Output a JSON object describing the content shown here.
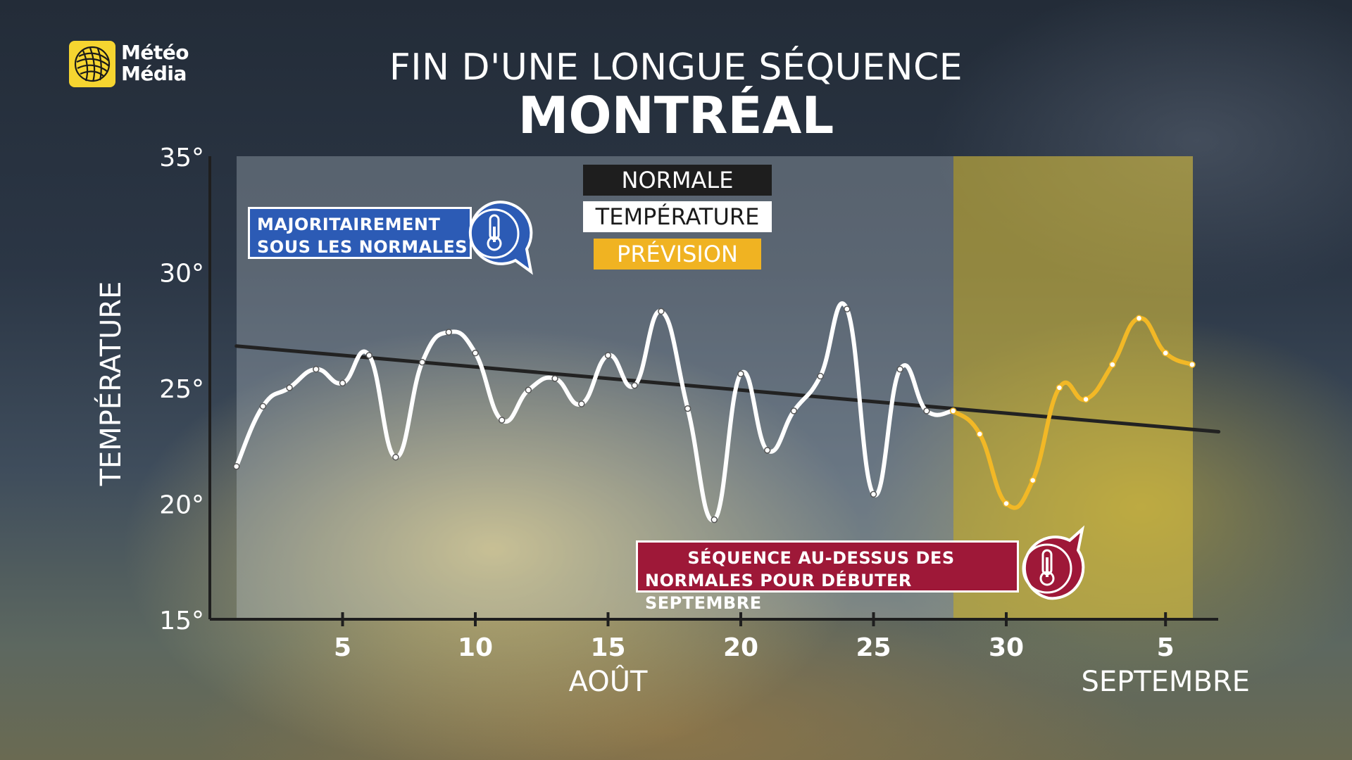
{
  "brand": {
    "line1": "Météo",
    "line2": "Média"
  },
  "title": "FIN D'UNE LONGUE SÉQUENCE",
  "subtitle": "MONTRÉAL",
  "legend": {
    "normale": "NORMALE",
    "temperature": "TEMPÉRATURE",
    "prevision": "PRÉVISION"
  },
  "callouts": {
    "below": [
      "MAJORITAIREMENT",
      "SOUS LES NORMALES"
    ],
    "above": [
      "SÉQUENCE AU-DESSUS DES",
      "NORMALES POUR DÉBUTER SEPTEMBRE"
    ]
  },
  "colors": {
    "observed": "#ffffff",
    "forecast": "#f2b826",
    "normal": "#222222",
    "below_badge": "#2c5bb5",
    "above_badge": "#9e1838"
  },
  "chart_data": {
    "type": "line",
    "ylabel": "TEMPÉRATURE",
    "ylim": [
      15,
      35
    ],
    "yticks": [
      {
        "value": 15,
        "label": "15°"
      },
      {
        "value": 20,
        "label": "20°"
      },
      {
        "value": 25,
        "label": "25°"
      },
      {
        "value": 30,
        "label": "30°"
      },
      {
        "value": 35,
        "label": "35°"
      }
    ],
    "xlim": [
      0,
      38
    ],
    "xticks": [
      {
        "day": 5,
        "label": "5"
      },
      {
        "day": 10,
        "label": "10"
      },
      {
        "day": 15,
        "label": "15"
      },
      {
        "day": 20,
        "label": "20"
      },
      {
        "day": 25,
        "label": "25"
      },
      {
        "day": 30,
        "label": "30"
      },
      {
        "day": 36,
        "label": "5"
      }
    ],
    "month_labels": [
      {
        "day": 15,
        "label": "AOÛT"
      },
      {
        "day": 36,
        "label": "SEPTEMBRE"
      }
    ],
    "series": [
      {
        "name": "TEMPÉRATURE",
        "days": [
          1,
          2,
          3,
          4,
          5,
          6,
          7,
          8,
          9,
          10,
          11,
          12,
          13,
          14,
          15,
          16,
          17,
          18,
          19,
          20,
          21,
          22,
          23,
          24,
          25,
          26,
          27,
          28
        ],
        "values": [
          21.6,
          24.2,
          25.0,
          25.8,
          25.2,
          26.4,
          22.0,
          26.1,
          27.4,
          26.5,
          23.6,
          24.9,
          25.4,
          24.3,
          26.4,
          25.1,
          28.3,
          24.1,
          19.3,
          25.6,
          22.3,
          24.0,
          25.5,
          28.4,
          20.4,
          25.8,
          24.0,
          24.0
        ]
      },
      {
        "name": "PRÉVISION",
        "days": [
          28,
          29,
          30,
          31,
          32,
          33,
          34,
          35,
          36,
          37
        ],
        "values": [
          24.0,
          23.0,
          20.0,
          21.0,
          25.0,
          24.5,
          26.0,
          28.0,
          26.5,
          26.0
        ]
      },
      {
        "name": "NORMALE",
        "days": [
          1,
          38
        ],
        "values": [
          26.8,
          23.1
        ]
      }
    ]
  }
}
